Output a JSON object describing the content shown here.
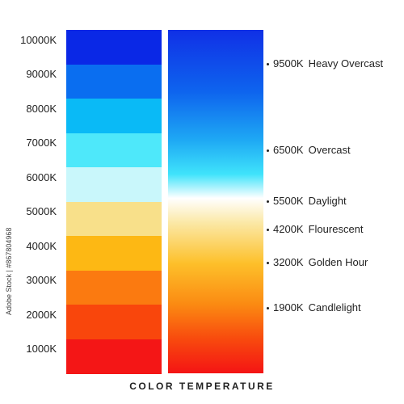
{
  "title": "COLOR TEMPERATURE",
  "scale": [
    {
      "label": "10000K",
      "color": "#0a28e6"
    },
    {
      "label": "9000K",
      "color": "#0a6ef0"
    },
    {
      "label": "8000K",
      "color": "#0abaf6"
    },
    {
      "label": "7000K",
      "color": "#4ee8fa"
    },
    {
      "label": "6000K",
      "color": "#c9f7fb"
    },
    {
      "label": "5000K",
      "color": "#f8e08a"
    },
    {
      "label": "4000K",
      "color": "#fdb814"
    },
    {
      "label": "3000K",
      "color": "#fb7a10"
    },
    {
      "label": "2000K",
      "color": "#f9460c"
    },
    {
      "label": "1000K",
      "color": "#f41616"
    }
  ],
  "gradient": {
    "stops": [
      {
        "color": "#1030e6",
        "offset": 0
      },
      {
        "color": "#0e64ee",
        "offset": 0.18
      },
      {
        "color": "#1ea8f4",
        "offset": 0.32
      },
      {
        "color": "#3fe3fb",
        "offset": 0.42
      },
      {
        "color": "#ffffff",
        "offset": 0.49
      },
      {
        "color": "#fbe9a8",
        "offset": 0.56
      },
      {
        "color": "#fdc02a",
        "offset": 0.68
      },
      {
        "color": "#fb8a12",
        "offset": 0.8
      },
      {
        "color": "#f84a0e",
        "offset": 0.9
      },
      {
        "color": "#f41414",
        "offset": 1
      }
    ]
  },
  "markers": [
    {
      "kelvin": "9500K",
      "name": "Heavy Overcast"
    },
    {
      "kelvin": "6500K",
      "name": "Overcast"
    },
    {
      "kelvin": "5500K",
      "name": "Daylight"
    },
    {
      "kelvin": "4200K",
      "name": "Flourescent"
    },
    {
      "kelvin": "3200K",
      "name": "Golden Hour"
    },
    {
      "kelvin": "1900K",
      "name": "Candlelight"
    }
  ],
  "watermark": "Adobe Stock | #867804968"
}
